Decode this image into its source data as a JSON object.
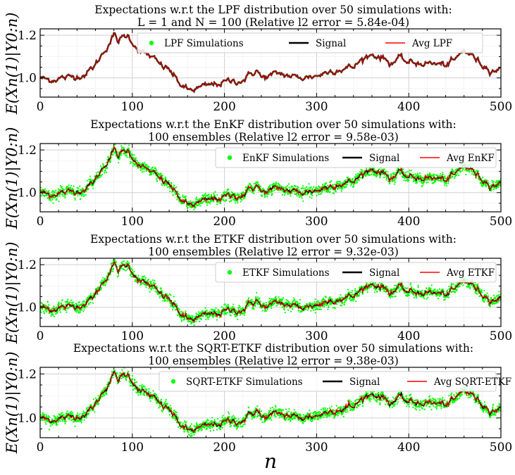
{
  "chart_data": [
    {
      "type": "line",
      "title_line1": "Expectations w.r.t the LPF distribution over 50 simulations with:",
      "title_line2": "L = 1 and N = 100 (Relative l2 error = 5.84e-04)",
      "ylabel": "E(Xn(1)|Y0:n)",
      "xlabel": "",
      "xlim": [
        0,
        500
      ],
      "ylim": [
        0.91,
        1.23
      ],
      "x_ticks": [
        "0",
        "100",
        "200",
        "300",
        "400",
        "500"
      ],
      "y_ticks": [
        "1.0",
        "1.2"
      ],
      "grid": true,
      "legend": [
        "LPF Simulations",
        "Signal",
        "Avg LPF"
      ],
      "legend_position": "top",
      "scatter_spread": 0.002,
      "series": [
        {
          "name": "LPF Simulations",
          "color": "#00ff00"
        },
        {
          "name": "Signal",
          "color": "#000000"
        },
        {
          "name": "Avg LPF",
          "color": "#ff0000"
        }
      ]
    },
    {
      "type": "line",
      "title_line1": "Expectations w.r.t the EnKF distribution over 50 simulations with:",
      "title_line2": "100 ensembles (Relative l2 error = 9.58e-03)",
      "ylabel": "E(Xn(1)|Y0:n)",
      "xlabel": "",
      "xlim": [
        0,
        500
      ],
      "ylim": [
        0.91,
        1.23
      ],
      "x_ticks": [
        "0",
        "100",
        "200",
        "300",
        "400",
        "500"
      ],
      "y_ticks": [
        "1.0",
        "1.2"
      ],
      "grid": true,
      "legend": [
        "EnKF Simulations",
        "Signal",
        "Avg EnKF"
      ],
      "legend_position": "top-right",
      "scatter_spread": 0.022,
      "series": [
        {
          "name": "EnKF Simulations",
          "color": "#00ff00"
        },
        {
          "name": "Signal",
          "color": "#000000"
        },
        {
          "name": "Avg EnKF",
          "color": "#ff0000"
        }
      ]
    },
    {
      "type": "line",
      "title_line1": "Expectations w.r.t the ETKF distribution over 50 simulations with:",
      "title_line2": "100 ensembles (Relative l2 error = 9.32e-03)",
      "ylabel": "E(Xn(1)|Y0:n)",
      "xlabel": "",
      "xlim": [
        0,
        500
      ],
      "ylim": [
        0.91,
        1.23
      ],
      "x_ticks": [
        "0",
        "100",
        "200",
        "300",
        "400",
        "500"
      ],
      "y_ticks": [
        "1.0",
        "1.2"
      ],
      "grid": true,
      "legend": [
        "ETKF Simulations",
        "Signal",
        "Avg ETKF"
      ],
      "legend_position": "top-right",
      "scatter_spread": 0.022,
      "series": [
        {
          "name": "ETKF Simulations",
          "color": "#00ff00"
        },
        {
          "name": "Signal",
          "color": "#000000"
        },
        {
          "name": "Avg ETKF",
          "color": "#ff0000"
        }
      ]
    },
    {
      "type": "line",
      "title_line1": "Expectations w.r.t the SQRT-ETKF distribution over 50 simulations with:",
      "title_line2": "100 ensembles (Relative l2 error = 9.38e-03)",
      "ylabel": "E(Xn(1)|Y0:n)",
      "xlabel": "n",
      "xlim": [
        0,
        500
      ],
      "ylim": [
        0.91,
        1.23
      ],
      "x_ticks": [
        "0",
        "100",
        "200",
        "300",
        "400",
        "500"
      ],
      "y_ticks": [
        "1.0",
        "1.2"
      ],
      "grid": true,
      "legend": [
        "SQRT-ETKF Simulations",
        "Signal",
        "Avg SQRT-ETKF"
      ],
      "legend_position": "top-right",
      "scatter_spread": 0.022,
      "series": [
        {
          "name": "SQRT-ETKF Simulations",
          "color": "#00ff00"
        },
        {
          "name": "Signal",
          "color": "#000000"
        },
        {
          "name": "Avg SQRT-ETKF",
          "color": "#ff0000"
        }
      ]
    }
  ],
  "signal_keypoints": {
    "n": [
      0,
      10,
      20,
      30,
      40,
      50,
      60,
      70,
      80,
      85,
      90,
      95,
      100,
      110,
      120,
      130,
      140,
      150,
      160,
      170,
      180,
      200,
      220,
      230,
      235,
      240,
      260,
      280,
      300,
      320,
      340,
      350,
      360,
      370,
      380,
      390,
      400,
      420,
      440,
      450,
      460,
      470,
      480,
      490,
      500
    ],
    "value": [
      1.0,
      0.99,
      1.0,
      1.0,
      1.01,
      1.02,
      1.06,
      1.13,
      1.2,
      1.17,
      1.19,
      1.2,
      1.17,
      1.12,
      1.1,
      1.06,
      1.04,
      0.98,
      0.94,
      0.95,
      0.96,
      0.98,
      0.99,
      1.02,
      1.04,
      1.0,
      1.02,
      1.0,
      1.01,
      1.04,
      1.05,
      1.09,
      1.11,
      1.1,
      1.07,
      1.09,
      1.07,
      1.07,
      1.06,
      1.08,
      1.13,
      1.1,
      1.06,
      1.04,
      1.04
    ]
  }
}
